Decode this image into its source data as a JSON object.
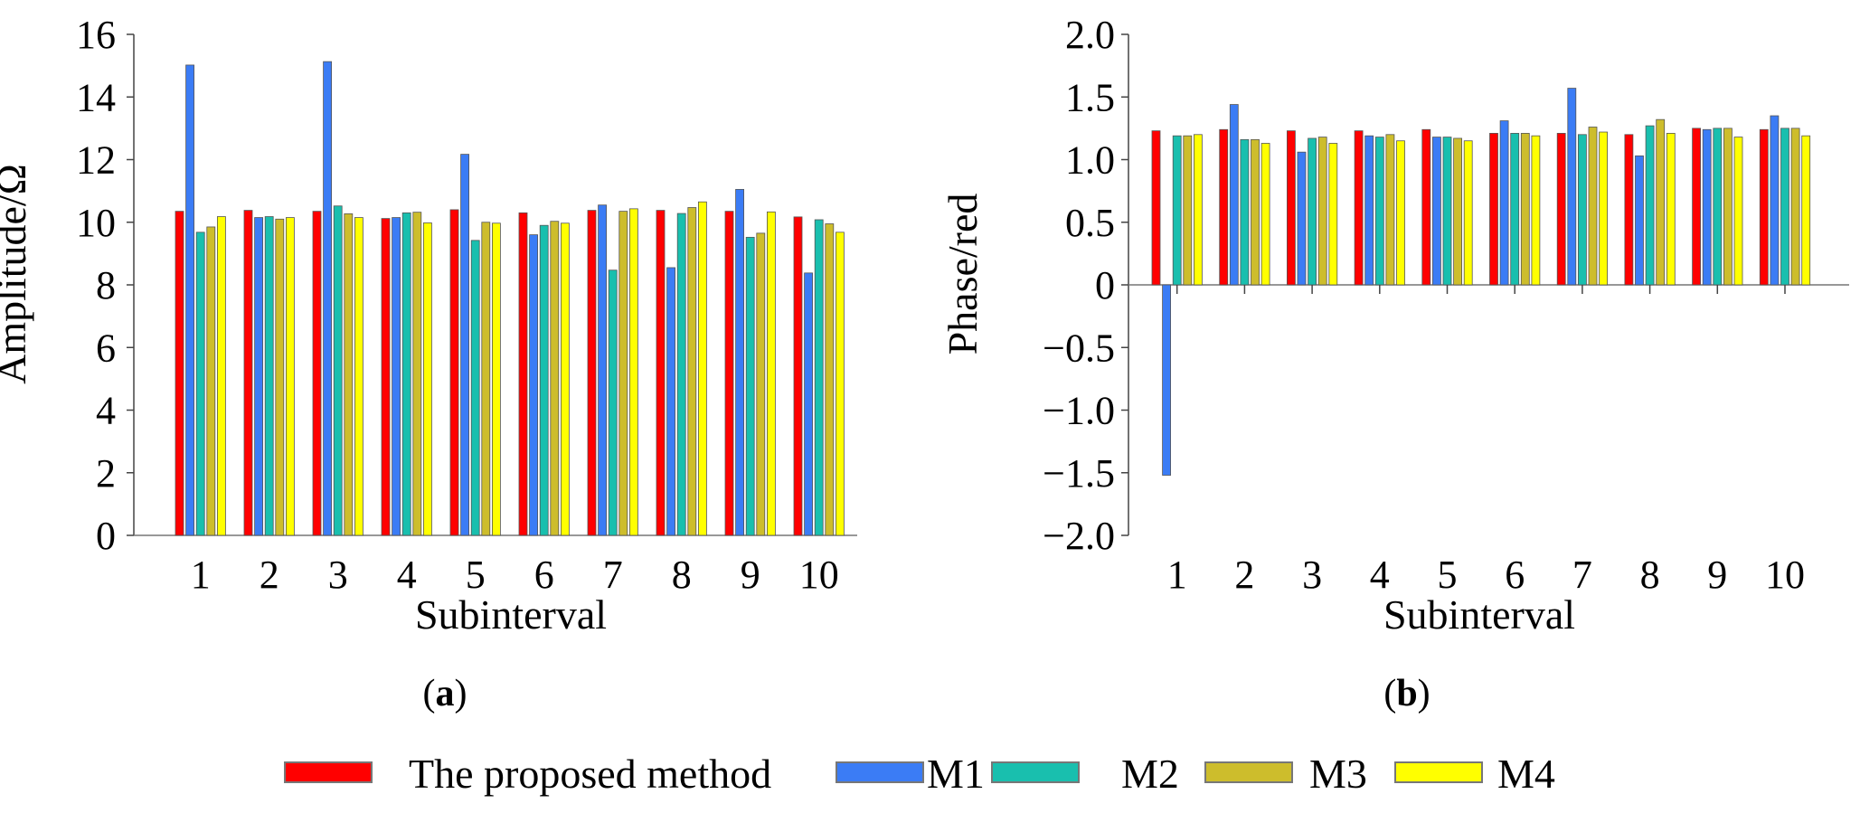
{
  "legend": [
    {
      "name": "The proposed method",
      "color": "#ff0000"
    },
    {
      "name": "M1",
      "color": "#3b7cf5"
    },
    {
      "name": "M2",
      "color": "#19bfae"
    },
    {
      "name": "M3",
      "color": "#cdbd2c"
    },
    {
      "name": "M4",
      "color": "#ffff00"
    }
  ],
  "chart_data": [
    {
      "type": "bar",
      "panel_label": "a",
      "xlabel": "Subinterval",
      "ylabel": "Amplitude/Ω",
      "categories": [
        "1",
        "2",
        "3",
        "4",
        "5",
        "6",
        "7",
        "8",
        "9",
        "10"
      ],
      "ylim": [
        0,
        16
      ],
      "yticks": [
        "0",
        "2",
        "4",
        "6",
        "8",
        "10",
        "12",
        "14",
        "16"
      ],
      "series": [
        {
          "name": "The proposed method",
          "color": "#ff0000",
          "values": [
            10.35,
            10.38,
            10.35,
            10.12,
            10.4,
            10.3,
            10.38,
            10.38,
            10.35,
            10.17
          ]
        },
        {
          "name": "M1",
          "color": "#3b7cf5",
          "values": [
            15.02,
            10.15,
            15.13,
            10.15,
            12.17,
            9.6,
            10.55,
            8.55,
            11.05,
            8.38
          ]
        },
        {
          "name": "M2",
          "color": "#19bfae",
          "values": [
            9.68,
            10.18,
            10.52,
            10.3,
            9.42,
            9.9,
            8.47,
            10.28,
            9.52,
            10.08
          ]
        },
        {
          "name": "M3",
          "color": "#cdbd2c",
          "values": [
            9.85,
            10.1,
            10.27,
            10.32,
            10.0,
            10.03,
            10.35,
            10.47,
            9.65,
            9.95
          ]
        },
        {
          "name": "M4",
          "color": "#ffff00",
          "values": [
            10.18,
            10.15,
            10.15,
            9.98,
            9.97,
            9.97,
            10.43,
            10.65,
            10.33,
            9.68
          ]
        }
      ]
    },
    {
      "type": "bar",
      "panel_label": "b",
      "xlabel": "Subinterval",
      "ylabel": "Phase/red",
      "categories": [
        "1",
        "2",
        "3",
        "4",
        "5",
        "6",
        "7",
        "8",
        "9",
        "10"
      ],
      "ylim": [
        -2.0,
        2.0
      ],
      "yticks": [
        "−2.0",
        "−1.5",
        "−1.0",
        "−0.5",
        "0",
        "0.5",
        "1.0",
        "1.5",
        "2.0"
      ],
      "series": [
        {
          "name": "The proposed method",
          "color": "#ff0000",
          "values": [
            1.23,
            1.24,
            1.23,
            1.23,
            1.24,
            1.21,
            1.21,
            1.2,
            1.25,
            1.24
          ]
        },
        {
          "name": "M1",
          "color": "#3b7cf5",
          "values": [
            -1.52,
            1.44,
            1.06,
            1.19,
            1.18,
            1.31,
            1.57,
            1.03,
            1.24,
            1.35
          ]
        },
        {
          "name": "M2",
          "color": "#19bfae",
          "values": [
            1.19,
            1.16,
            1.17,
            1.18,
            1.18,
            1.21,
            1.2,
            1.27,
            1.25,
            1.25
          ]
        },
        {
          "name": "M3",
          "color": "#cdbd2c",
          "values": [
            1.19,
            1.16,
            1.18,
            1.2,
            1.17,
            1.21,
            1.26,
            1.32,
            1.25,
            1.25
          ]
        },
        {
          "name": "M4",
          "color": "#ffff00",
          "values": [
            1.2,
            1.13,
            1.13,
            1.15,
            1.15,
            1.19,
            1.22,
            1.21,
            1.18,
            1.19
          ]
        }
      ]
    }
  ]
}
